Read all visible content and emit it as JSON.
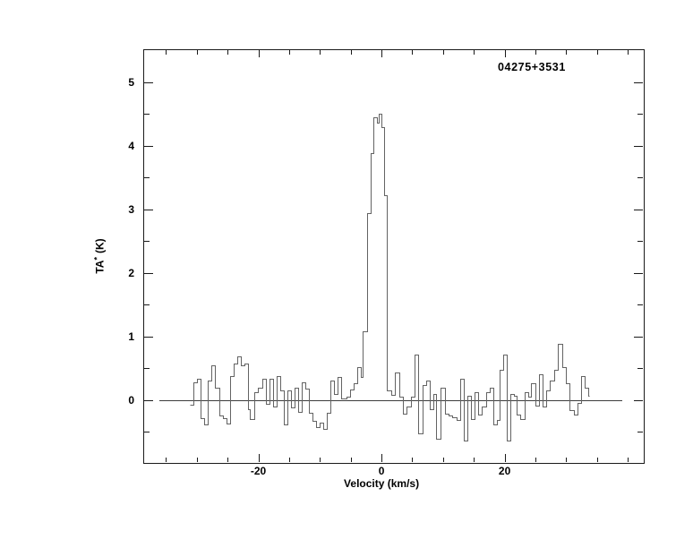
{
  "figure": {
    "source_label": "04275+3531",
    "xlabel": "Velocity (km/s)",
    "ylabel_t": "T",
    "ylabel_a": "A",
    "ylabel_star": "*",
    "ylabel_unit": "(K)"
  },
  "colors": {
    "background": "#ffffff",
    "frame": "#1a1a1a",
    "ticks": "#1a1a1a",
    "baseline": "#3d3d3d",
    "trace": "#636363",
    "text": "#000000"
  },
  "chart_data": {
    "type": "line",
    "style": "histogram-step",
    "title": "04275+3531",
    "xlabel": "Velocity (km/s)",
    "ylabel": "T_A* (K)",
    "xlim": [
      -38.7,
      42.6
    ],
    "ylim": [
      -0.99,
      5.52
    ],
    "grid": false,
    "legend": false,
    "x_ticks": {
      "major": [
        -20,
        0,
        20
      ],
      "minor": [
        -35,
        -30,
        -25,
        -15,
        -10,
        -5,
        5,
        10,
        15,
        25,
        30,
        35,
        40
      ]
    },
    "y_ticks": {
      "major": [
        0,
        1,
        2,
        3,
        4,
        5
      ],
      "minor": [
        -0.5,
        0.5,
        1.5,
        2.5,
        3.5,
        4.5
      ]
    },
    "baseline": {
      "y": 0,
      "x_start": -36.1,
      "x_end": 39.1
    },
    "peak": {
      "velocity": -0.2,
      "temperature": 4.5
    },
    "channel_edges_kms": [
      -31.2,
      -30.6,
      -30.0,
      -29.4,
      -28.8,
      -28.2,
      -27.6,
      -27.1,
      -26.3,
      -25.8,
      -25.2,
      -24.6,
      -24.0,
      -23.4,
      -22.8,
      -22.3,
      -21.7,
      -21.4,
      -20.7,
      -20.1,
      -19.4,
      -18.8,
      -18.2,
      -17.6,
      -17.0,
      -16.4,
      -15.9,
      -15.3,
      -14.7,
      -14.1,
      -13.5,
      -12.9,
      -12.4,
      -11.8,
      -11.2,
      -10.6,
      -10.0,
      -9.5,
      -8.9,
      -8.3,
      -7.7,
      -7.1,
      -6.5,
      -5.7,
      -5.1,
      -4.5,
      -3.9,
      -3.3,
      -3.0,
      -2.4,
      -1.8,
      -1.3,
      -0.8,
      -0.4,
      0.0,
      0.4,
      0.9,
      1.6,
      2.2,
      2.9,
      3.5,
      4.1,
      4.8,
      5.4,
      6.0,
      6.7,
      7.3,
      7.9,
      8.4,
      8.9,
      9.6,
      10.3,
      10.9,
      11.5,
      12.2,
      12.8,
      13.3,
      13.9,
      14.5,
      15.1,
      15.7,
      16.3,
      17.0,
      17.6,
      18.2,
      18.8,
      19.2,
      19.8,
      20.4,
      20.9,
      21.5,
      22.0,
      22.6,
      23.3,
      23.9,
      24.3,
      25.0,
      25.6,
      26.2,
      26.8,
      27.4,
      28.0,
      28.7,
      29.4,
      30.0,
      30.6,
      31.2,
      31.8,
      32.4,
      33.0,
      33.6,
      33.8
    ],
    "values_K": [
      -0.08,
      0.28,
      0.33,
      -0.28,
      -0.38,
      0.3,
      0.54,
      0.2,
      -0.25,
      -0.28,
      -0.37,
      0.38,
      0.57,
      0.69,
      0.54,
      0.57,
      -0.14,
      -0.3,
      0.12,
      0.19,
      0.33,
      -0.06,
      0.33,
      -0.1,
      0.38,
      0.15,
      -0.38,
      0.15,
      -0.12,
      0.2,
      -0.18,
      0.28,
      0.18,
      -0.2,
      -0.33,
      -0.42,
      -0.35,
      -0.45,
      -0.2,
      0.3,
      0.1,
      0.36,
      0.02,
      0.05,
      0.17,
      0.26,
      0.52,
      0.36,
      1.08,
      2.94,
      3.88,
      4.45,
      4.37,
      4.5,
      4.3,
      3.22,
      0.15,
      0.08,
      0.44,
      0.05,
      -0.22,
      -0.1,
      0.05,
      0.71,
      -0.53,
      0.24,
      0.31,
      -0.15,
      0.1,
      -0.61,
      0.19,
      -0.21,
      -0.24,
      -0.27,
      -0.32,
      0.33,
      -0.64,
      0.07,
      -0.3,
      0.12,
      -0.23,
      -0.1,
      0.12,
      0.2,
      -0.39,
      -0.31,
      0.48,
      0.72,
      -0.64,
      0.1,
      0.07,
      -0.23,
      -0.3,
      0.12,
      0.05,
      0.26,
      -0.09,
      0.4,
      -0.1,
      0.15,
      0.31,
      0.47,
      0.88,
      0.52,
      0.26,
      -0.16,
      -0.23,
      -0.05,
      0.38,
      0.19,
      0.07
    ]
  }
}
